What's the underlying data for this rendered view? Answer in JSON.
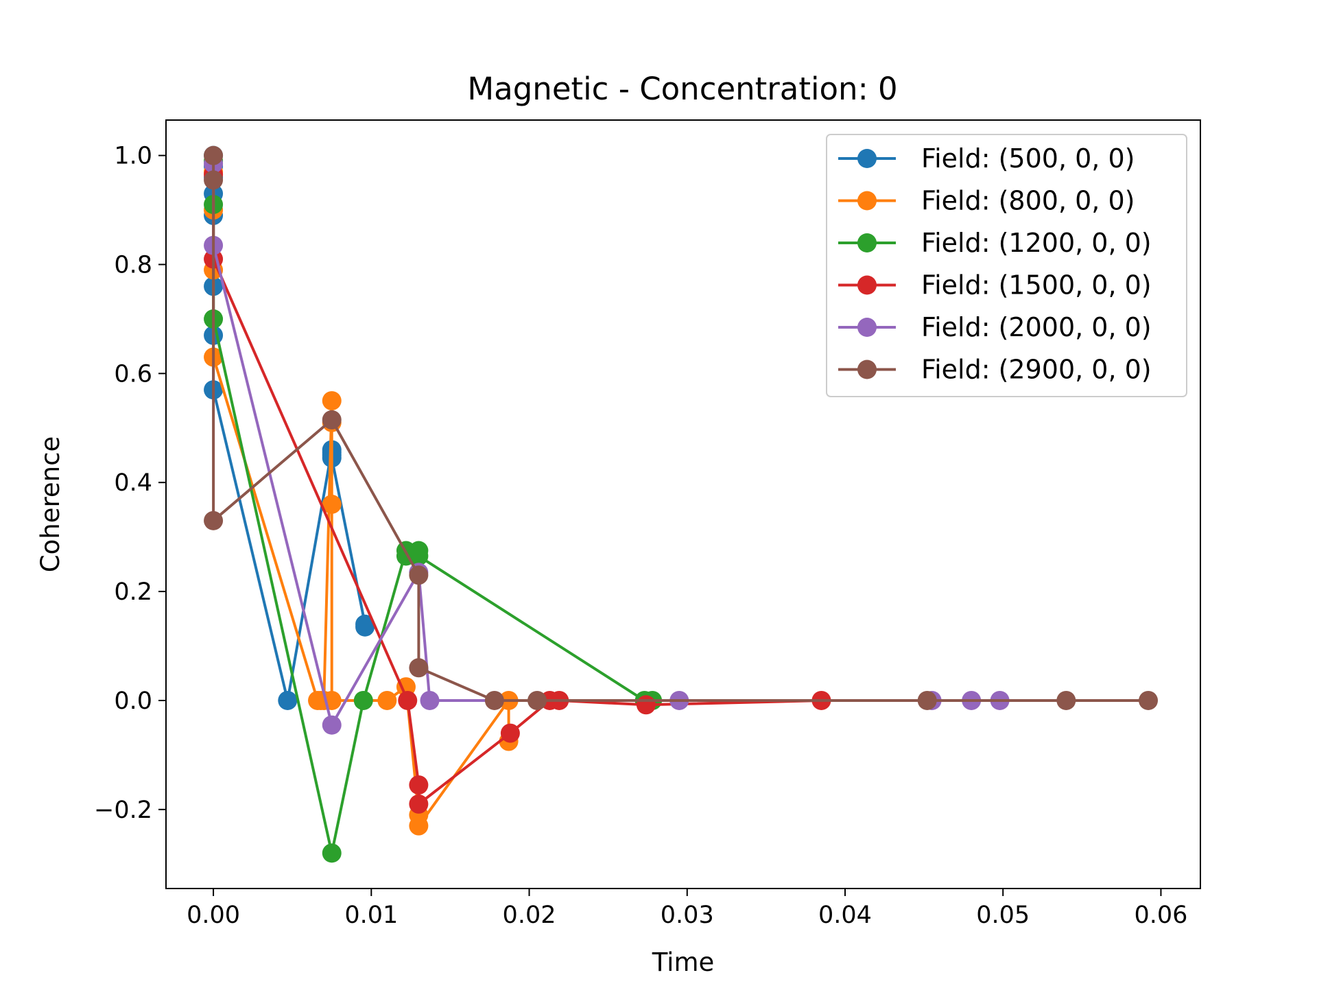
{
  "chart_data": {
    "type": "line",
    "title": "Magnetic - Concentration: 0",
    "xlabel": "Time",
    "ylabel": "Coherence",
    "xlim": [
      -0.003,
      0.0625
    ],
    "ylim": [
      -0.345,
      1.065
    ],
    "xticks": [
      0.0,
      0.01,
      0.02,
      0.03,
      0.04,
      0.05,
      0.06
    ],
    "xtick_labels": [
      "0.00",
      "0.01",
      "0.02",
      "0.03",
      "0.04",
      "0.05",
      "0.06"
    ],
    "yticks": [
      -0.2,
      0.0,
      0.2,
      0.4,
      0.6,
      0.8,
      1.0
    ],
    "ytick_labels": [
      "−0.2",
      "0.0",
      "0.2",
      "0.4",
      "0.6",
      "0.8",
      "1.0"
    ],
    "grid": false,
    "legend_position": "top-right",
    "series": [
      {
        "name": "Field: (500, 0, 0)",
        "color": "#1f77b4",
        "x": [
          0,
          0,
          0,
          0,
          0,
          0,
          0,
          0,
          0.0047,
          0.0075,
          0.0075,
          0.0075,
          0.0075,
          0.0096,
          0.0096
        ],
        "y": [
          1.0,
          0.98,
          0.96,
          0.93,
          0.89,
          0.76,
          0.67,
          0.57,
          0.0,
          0.46,
          0.455,
          0.45,
          0.445,
          0.14,
          0.135
        ]
      },
      {
        "name": "Field: (800, 0, 0)",
        "color": "#ff7f0e",
        "x": [
          0,
          0,
          0,
          0,
          0.0066,
          0.0068,
          0.007,
          0.0075,
          0.0075,
          0.0075,
          0.0075,
          0.011,
          0.0122,
          0.013,
          0.013,
          0.0187,
          0.0187
        ],
        "y": [
          0.97,
          0.9,
          0.79,
          0.63,
          0.0,
          0.0,
          0.0,
          0.55,
          0.51,
          0.36,
          0.0,
          0.0,
          0.025,
          -0.21,
          -0.23,
          0.0,
          -0.075
        ]
      },
      {
        "name": "Field: (1200, 0, 0)",
        "color": "#2ca02c",
        "x": [
          0,
          0,
          0,
          0.0075,
          0.0095,
          0.0122,
          0.0122,
          0.013,
          0.013,
          0.0273,
          0.0278
        ],
        "y": [
          0.99,
          0.91,
          0.7,
          -0.28,
          0.0,
          0.275,
          0.265,
          0.275,
          0.265,
          0.0,
          0.0
        ]
      },
      {
        "name": "Field: (1500, 0, 0)",
        "color": "#d62728",
        "x": [
          0,
          0,
          0.0123,
          0.013,
          0.013,
          0.0188,
          0.0213,
          0.0219,
          0.0274,
          0.0385
        ],
        "y": [
          0.965,
          0.81,
          0.0,
          -0.155,
          -0.19,
          -0.06,
          0.0,
          0.0,
          -0.008,
          0.0
        ]
      },
      {
        "name": "Field: (2000, 0, 0)",
        "color": "#9467bd",
        "x": [
          0,
          0,
          0.0075,
          0.013,
          0.0137,
          0.0295,
          0.0455,
          0.048,
          0.0498
        ],
        "y": [
          0.985,
          0.835,
          -0.045,
          0.235,
          0.0,
          0.0,
          0.0,
          0.0,
          0.0
        ]
      },
      {
        "name": "Field: (2900, 0, 0)",
        "color": "#8c564b",
        "x": [
          0,
          0,
          0,
          0.0075,
          0.013,
          0.013,
          0.0178,
          0.0205,
          0.0452,
          0.054,
          0.0592
        ],
        "y": [
          1.0,
          0.955,
          0.33,
          0.515,
          0.23,
          0.06,
          0.0,
          0.0,
          0.0,
          0.0,
          0.0
        ]
      }
    ]
  }
}
